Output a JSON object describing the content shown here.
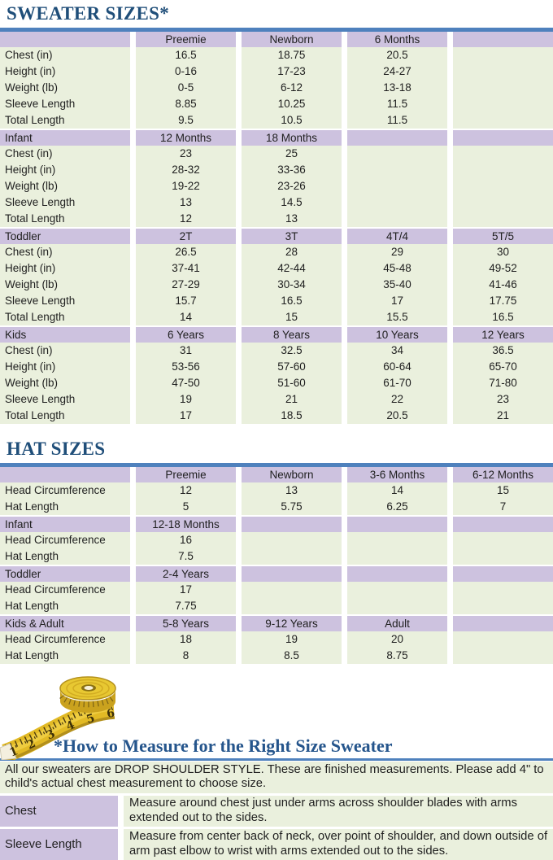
{
  "colors": {
    "accent_blue": "#4f81bd",
    "title_blue": "#1f4e79",
    "heading_blue": "#25558c",
    "header_purple": "#cdc2df",
    "row_green": "#eaf0dd",
    "tape_yellow": "#e2ba25"
  },
  "sweater": {
    "title": "SWEATER SIZES*",
    "sections": [
      {
        "header": [
          "",
          "Preemie",
          "Newborn",
          "6 Months",
          ""
        ],
        "rows": [
          [
            "Chest (in)",
            "16.5",
            "18.75",
            "20.5",
            ""
          ],
          [
            "Height (in)",
            "0-16",
            "17-23",
            "24-27",
            ""
          ],
          [
            "Weight (lb)",
            "0-5",
            "6-12",
            "13-18",
            ""
          ],
          [
            "Sleeve Length",
            "8.85",
            "10.25",
            "11.5",
            ""
          ],
          [
            "Total Length",
            "9.5",
            "10.5",
            "11.5",
            ""
          ]
        ]
      },
      {
        "header": [
          "Infant",
          "12 Months",
          "18 Months",
          "",
          ""
        ],
        "rows": [
          [
            "Chest (in)",
            "23",
            "25",
            "",
            ""
          ],
          [
            "Height (in)",
            "28-32",
            "33-36",
            "",
            ""
          ],
          [
            "Weight (lb)",
            "19-22",
            "23-26",
            "",
            ""
          ],
          [
            "Sleeve Length",
            "13",
            "14.5",
            "",
            ""
          ],
          [
            "Total Length",
            "12",
            "13",
            "",
            ""
          ]
        ]
      },
      {
        "header": [
          "Toddler",
          "2T",
          "3T",
          "4T/4",
          "5T/5"
        ],
        "rows": [
          [
            "Chest (in)",
            "26.5",
            "28",
            "29",
            "30"
          ],
          [
            "Height (in)",
            "37-41",
            "42-44",
            "45-48",
            "49-52"
          ],
          [
            "Weight (lb)",
            "27-29",
            "30-34",
            "35-40",
            "41-46"
          ],
          [
            "Sleeve Length",
            "15.7",
            "16.5",
            "17",
            "17.75"
          ],
          [
            "Total Length",
            "14",
            "15",
            "15.5",
            "16.5"
          ]
        ]
      },
      {
        "header": [
          "Kids",
          "6 Years",
          "8 Years",
          "10 Years",
          "12 Years"
        ],
        "rows": [
          [
            "Chest (in)",
            "31",
            "32.5",
            "34",
            "36.5"
          ],
          [
            "Height (in)",
            "53-56",
            "57-60",
            "60-64",
            "65-70"
          ],
          [
            "Weight (lb)",
            "47-50",
            "51-60",
            "61-70",
            "71-80"
          ],
          [
            "Sleeve Length",
            "19",
            "21",
            "22",
            "23"
          ],
          [
            "Total Length",
            "17",
            "18.5",
            "20.5",
            "21"
          ]
        ]
      }
    ]
  },
  "hats": {
    "title": "HAT SIZES",
    "sections": [
      {
        "header": [
          "",
          "Preemie",
          "Newborn",
          "3-6 Months",
          "6-12 Months"
        ],
        "rows": [
          [
            "Head Circumference",
            "12",
            "13",
            "14",
            "15"
          ],
          [
            "Hat Length",
            "5",
            "5.75",
            "6.25",
            "7"
          ]
        ]
      },
      {
        "header": [
          "Infant",
          "12-18 Months",
          "",
          "",
          ""
        ],
        "rows": [
          [
            "Head Circumference",
            "16",
            "",
            "",
            ""
          ],
          [
            "Hat Length",
            "7.5",
            "",
            "",
            ""
          ]
        ]
      },
      {
        "header": [
          "Toddler",
          "2-4 Years",
          "",
          "",
          ""
        ],
        "rows": [
          [
            "Head Circumference",
            "17",
            "",
            "",
            ""
          ],
          [
            "Hat Length",
            "7.75",
            "",
            "",
            ""
          ]
        ]
      },
      {
        "header": [
          "Kids & Adult",
          "5-8 Years",
          "9-12 Years",
          "Adult",
          ""
        ],
        "rows": [
          [
            "Head Circumference",
            "18",
            "19",
            "20",
            ""
          ],
          [
            "Hat Length",
            "8",
            "8.5",
            "8.75",
            ""
          ]
        ]
      }
    ]
  },
  "measure": {
    "heading": "*How to Measure for the Right Size Sweater",
    "intro": "All our sweaters are DROP SHOULDER STYLE.  These are finished measurements.  Please add 4\" to child's actual chest measurement to choose size.",
    "rows": [
      {
        "label": "Chest",
        "text": "Measure around chest just under arms across shoulder blades with arms extended out to the sides."
      },
      {
        "label": "Sleeve Length",
        "text": "Measure from center back of neck, over point of shoulder, and down outside of arm past elbow to wrist with arms extended out to the sides."
      }
    ],
    "tape_numbers": [
      "1",
      "2",
      "3",
      "4",
      "5",
      "6"
    ]
  }
}
